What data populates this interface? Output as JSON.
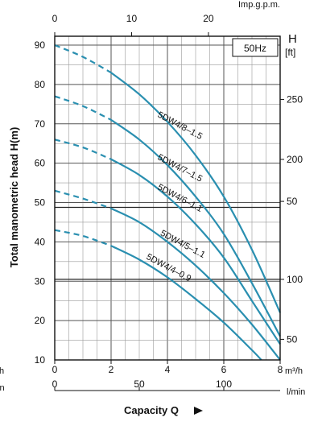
{
  "chart_data": {
    "type": "line",
    "badge": "50Hz",
    "xlabel": "Capacity Q",
    "ylabel": "Total manometric head H(m)",
    "right_axis_label": "H",
    "right_axis_unit": "[ft]",
    "top_axis_unit": "Imp.g.p.m.",
    "xunit_primary": "m³/h",
    "xunit_secondary": "l/min",
    "cut_left_upper": "h",
    "cut_left_lower": "in",
    "xlim": [
      0,
      8
    ],
    "ylim": [
      10,
      90
    ],
    "x_ticks": [
      "0",
      "2",
      "4",
      "6",
      "8"
    ],
    "y_ticks": [
      "10",
      "20",
      "30",
      "40",
      "50",
      "60",
      "70",
      "80",
      "90"
    ],
    "top_ticks": [
      "0",
      "10",
      "20"
    ],
    "lmin_ticks": [
      "0",
      "50",
      "100"
    ],
    "ft_ticks": [
      "50",
      "100",
      "50",
      "200",
      "250"
    ],
    "series": [
      {
        "name": "5DW4/8–1.5",
        "points": [
          [
            0,
            90
          ],
          [
            1,
            87
          ],
          [
            2,
            83
          ],
          [
            3,
            77.5
          ],
          [
            4,
            70.5
          ],
          [
            5,
            62
          ],
          [
            6,
            51.5
          ],
          [
            7,
            38
          ],
          [
            8,
            22
          ]
        ],
        "dashed_until": 2
      },
      {
        "name": "5DW4/7–1.5",
        "points": [
          [
            0,
            77
          ],
          [
            1,
            74.5
          ],
          [
            2,
            71
          ],
          [
            3,
            66
          ],
          [
            4,
            59.5
          ],
          [
            5,
            51.5
          ],
          [
            6,
            42
          ],
          [
            7,
            29.5
          ],
          [
            8,
            16
          ]
        ],
        "dashed_until": 2
      },
      {
        "name": "5DW4/6–1.1",
        "points": [
          [
            0,
            66
          ],
          [
            1,
            64
          ],
          [
            2,
            61
          ],
          [
            3,
            57
          ],
          [
            4,
            51.5
          ],
          [
            5,
            44.5
          ],
          [
            6,
            36
          ],
          [
            7,
            25
          ],
          [
            8,
            14
          ]
        ],
        "dashed_until": 2
      },
      {
        "name": "5DW4/5–1.1",
        "points": [
          [
            0,
            53
          ],
          [
            1,
            51
          ],
          [
            2,
            48.5
          ],
          [
            3,
            45
          ],
          [
            4,
            40
          ],
          [
            5,
            34
          ],
          [
            6,
            27
          ],
          [
            7,
            19
          ],
          [
            8,
            10
          ]
        ],
        "dashed_until": 2
      },
      {
        "name": "5DW4/4–0.9",
        "points": [
          [
            0,
            43
          ],
          [
            1,
            41.5
          ],
          [
            2,
            39
          ],
          [
            3,
            35.5
          ],
          [
            4,
            31
          ],
          [
            5,
            25.5
          ],
          [
            6,
            19.5
          ],
          [
            7,
            12.5
          ],
          [
            7.6,
            8
          ]
        ],
        "dashed_until": 2
      }
    ]
  }
}
